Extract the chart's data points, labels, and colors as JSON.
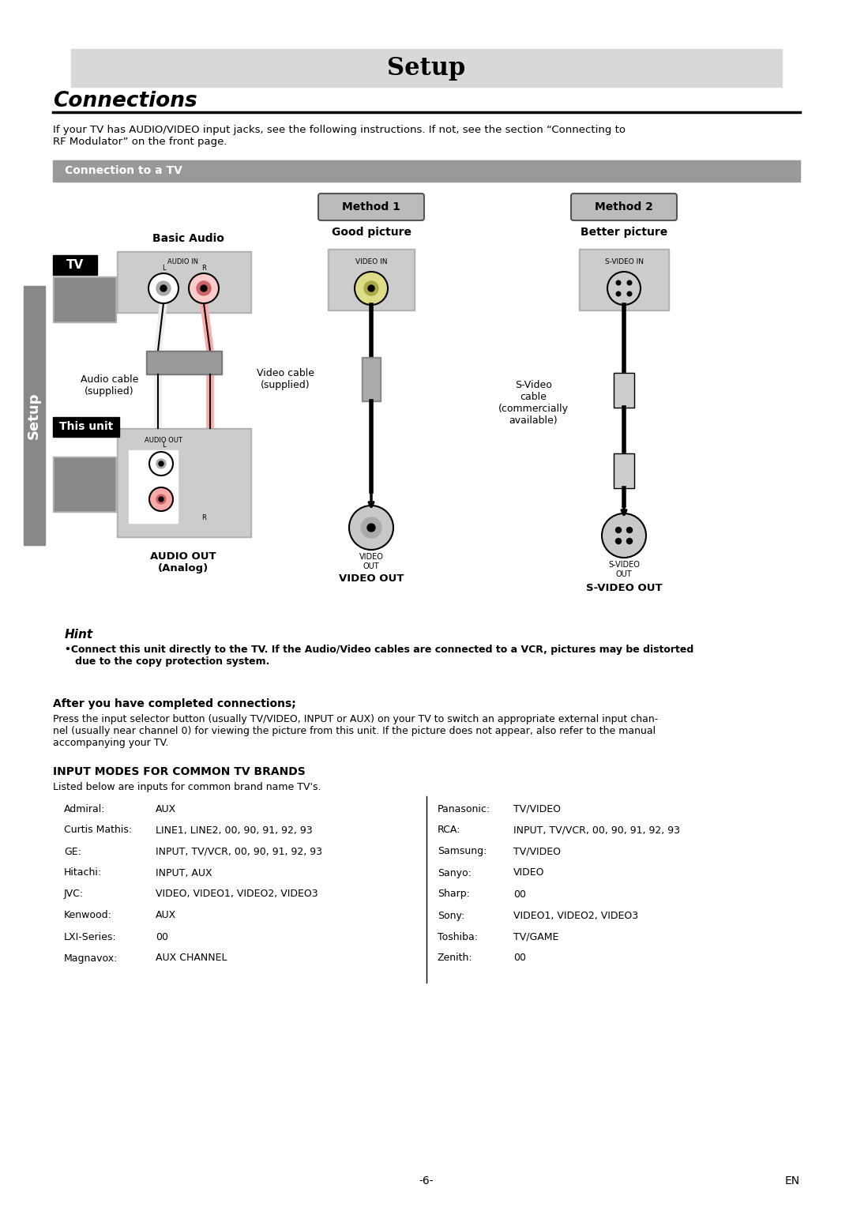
{
  "page_bg": "#ffffff",
  "title_bar_bg": "#d8d8d8",
  "title_text": "Setup",
  "connections_title": "Connections",
  "intro_text": "If your TV has AUDIO/VIDEO input jacks, see the following instructions. If not, see the section “Connecting to\nRF Modulator” on the front page.",
  "connection_tv_bar_bg": "#999999",
  "connection_tv_text": "Connection to a TV",
  "basic_audio_label": "Basic Audio",
  "method1_label": "Method 1",
  "method1_sub": "Good picture",
  "method2_label": "Method 2",
  "method2_sub": "Better picture",
  "tv_label": "TV",
  "this_unit_label": "This unit",
  "audio_cable_label": "Audio cable\n(supplied)",
  "video_cable_label": "Video cable\n(supplied)",
  "svideo_cable_label": "S-Video\ncable\n(commercially\navailable)",
  "audio_out_label": "AUDIO OUT\n(Analog)",
  "video_out_label": "VIDEO OUT",
  "svideo_out_label": "S-VIDEO OUT",
  "video_out_small": "VIDEO\nOUT",
  "svideo_out_small": "S-VIDEO\nOUT",
  "hint_title": "Hint",
  "hint_bullet": "•Connect this unit directly to the TV. If the Audio/Video cables are connected to a VCR, pictures may be distorted\n   due to the copy protection system.",
  "after_title": "After you have completed connections;",
  "after_text": "Press the input selector button (usually TV/VIDEO, INPUT or AUX) on your TV to switch an appropriate external input chan-\nnel (usually near channel 0) for viewing the picture from this unit. If the picture does not appear, also refer to the manual\naccompanying your TV.",
  "input_modes_title": "INPUT MODES FOR COMMON TV BRANDS",
  "input_modes_sub": "Listed below are inputs for common brand name TV's.",
  "setup_sidebar_bg": "#888888",
  "setup_sidebar_text": "Setup",
  "table_data_left": [
    [
      "Admiral:",
      "AUX"
    ],
    [
      "Curtis Mathis:",
      "LINE1, LINE2, 00, 90, 91, 92, 93"
    ],
    [
      "GE:",
      "INPUT, TV/VCR, 00, 90, 91, 92, 93"
    ],
    [
      "Hitachi:",
      "INPUT, AUX"
    ],
    [
      "JVC:",
      "VIDEO, VIDEO1, VIDEO2, VIDEO3"
    ],
    [
      "Kenwood:",
      "AUX"
    ],
    [
      "LXI-Series:",
      "00"
    ],
    [
      "Magnavox:",
      "AUX CHANNEL"
    ]
  ],
  "table_data_right": [
    [
      "Panasonic:",
      "TV/VIDEO"
    ],
    [
      "RCA:",
      "INPUT, TV/VCR, 00, 90, 91, 92, 93"
    ],
    [
      "Samsung:",
      "TV/VIDEO"
    ],
    [
      "Sanyo:",
      "VIDEO"
    ],
    [
      "Sharp:",
      "00"
    ],
    [
      "Sony:",
      "VIDEO1, VIDEO2, VIDEO3"
    ],
    [
      "Toshiba:",
      "TV/GAME"
    ],
    [
      "Zenith:",
      "00"
    ]
  ],
  "page_number": "-6-",
  "en_label": "EN"
}
